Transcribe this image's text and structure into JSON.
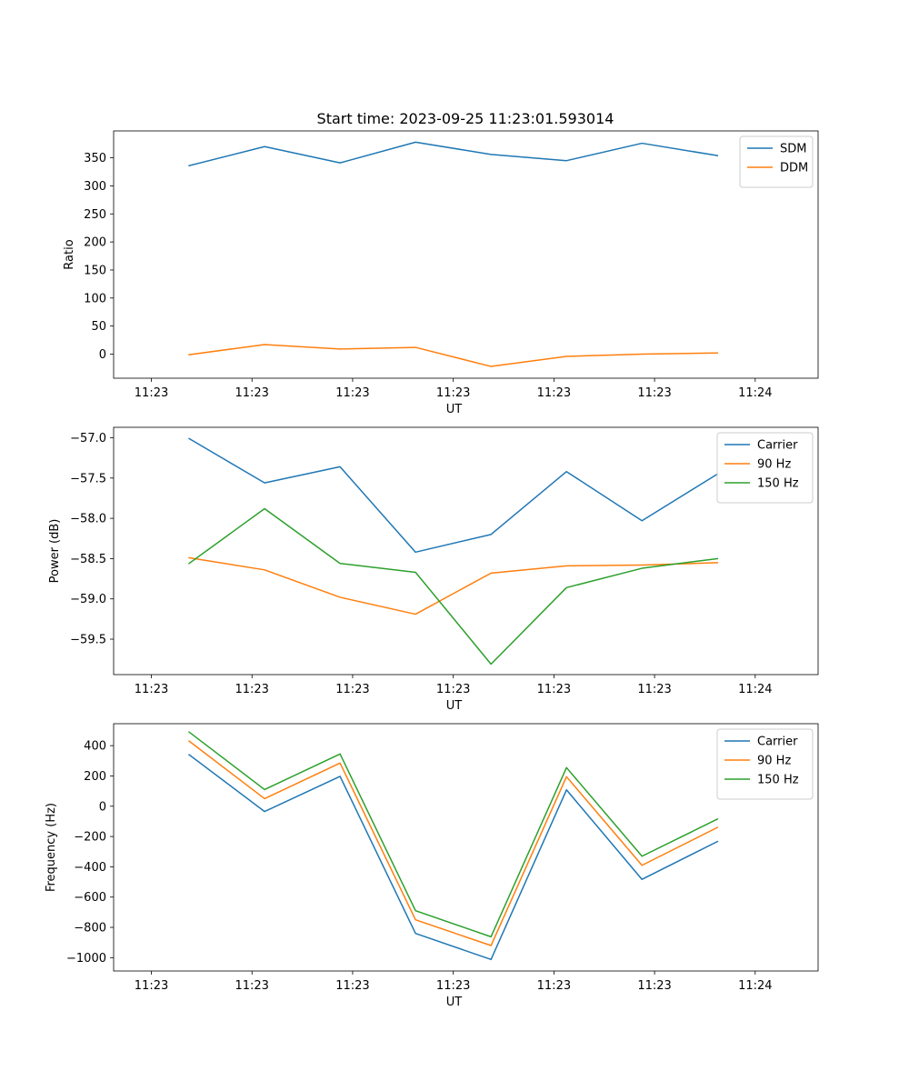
{
  "figure_title": "Start time: 2023-09-25 11:23:01.593014",
  "colors": {
    "blue": "#1f77b4",
    "orange": "#ff7f0e",
    "green": "#2ca02c"
  },
  "chart_data": [
    {
      "type": "line",
      "title": "Start time: 2023-09-25 11:23:01.593014",
      "xlabel": "UT",
      "ylabel": "Ratio",
      "x_tick_labels": [
        "11:23",
        "11:23",
        "11:23",
        "11:23",
        "11:23",
        "11:23",
        "11:24"
      ],
      "y_ticks": [
        0,
        50,
        100,
        150,
        200,
        250,
        300,
        350
      ],
      "ylim": [
        -43,
        398
      ],
      "legend_position": "top-right",
      "x": [
        0.75,
        2.25,
        3.75,
        5.25,
        6.75,
        8.25,
        9.75,
        11.25
      ],
      "xlim": [
        -0.75,
        13.25
      ],
      "series": [
        {
          "name": "SDM",
          "color": "#1f77b4",
          "values": [
            336,
            370,
            341,
            378,
            356,
            345,
            376,
            354
          ]
        },
        {
          "name": "DDM",
          "color": "#ff7f0e",
          "values": [
            -1,
            17,
            9,
            12,
            -22,
            -4,
            0,
            2
          ]
        }
      ]
    },
    {
      "type": "line",
      "title": "",
      "xlabel": "UT",
      "ylabel": "Power (dB)",
      "x_tick_labels": [
        "11:23",
        "11:23",
        "11:23",
        "11:23",
        "11:23",
        "11:23",
        "11:24"
      ],
      "y_ticks": [
        -59.5,
        -59.0,
        -58.5,
        -58.0,
        -57.5,
        -57.0
      ],
      "y_tick_labels": [
        "−59.5",
        "−59.0",
        "−58.5",
        "−58.0",
        "−57.5",
        "−57.0"
      ],
      "ylim": [
        -59.94,
        -56.87
      ],
      "legend_position": "top-right",
      "x": [
        0.75,
        2.25,
        3.75,
        5.25,
        6.75,
        8.25,
        9.75,
        11.25
      ],
      "xlim": [
        -0.75,
        13.25
      ],
      "series": [
        {
          "name": "Carrier",
          "color": "#1f77b4",
          "values": [
            -57.01,
            -57.56,
            -57.36,
            -58.42,
            -58.2,
            -57.42,
            -58.03,
            -57.45
          ]
        },
        {
          "name": "90 Hz",
          "color": "#ff7f0e",
          "values": [
            -58.49,
            -58.64,
            -58.98,
            -59.19,
            -58.68,
            -58.59,
            -58.58,
            -58.55
          ]
        },
        {
          "name": "150 Hz",
          "color": "#2ca02c",
          "values": [
            -58.56,
            -57.88,
            -58.56,
            -58.67,
            -59.81,
            -58.86,
            -58.62,
            -58.5
          ]
        }
      ]
    },
    {
      "type": "line",
      "title": "",
      "xlabel": "UT",
      "ylabel": "Frequency (Hz)",
      "x_tick_labels": [
        "11:23",
        "11:23",
        "11:23",
        "11:23",
        "11:23",
        "11:23",
        "11:24"
      ],
      "y_ticks": [
        -1000,
        -800,
        -600,
        -400,
        -200,
        0,
        200,
        400
      ],
      "y_tick_labels": [
        "−1000",
        "−800",
        "−600",
        "−400",
        "−200",
        "0",
        "200",
        "400"
      ],
      "ylim": [
        -1088,
        545
      ],
      "legend_position": "top-right",
      "x": [
        0.75,
        2.25,
        3.75,
        5.25,
        6.75,
        8.25,
        9.75,
        11.25
      ],
      "xlim": [
        -0.75,
        13.25
      ],
      "series": [
        {
          "name": "Carrier",
          "color": "#1f77b4",
          "values": [
            340,
            -35,
            197,
            -840,
            -1012,
            108,
            -483,
            -233
          ]
        },
        {
          "name": "90 Hz",
          "color": "#ff7f0e",
          "values": [
            430,
            50,
            285,
            -750,
            -920,
            195,
            -390,
            -140
          ]
        },
        {
          "name": "150 Hz",
          "color": "#2ca02c",
          "values": [
            490,
            110,
            345,
            -690,
            -862,
            255,
            -330,
            -85
          ]
        }
      ]
    }
  ]
}
